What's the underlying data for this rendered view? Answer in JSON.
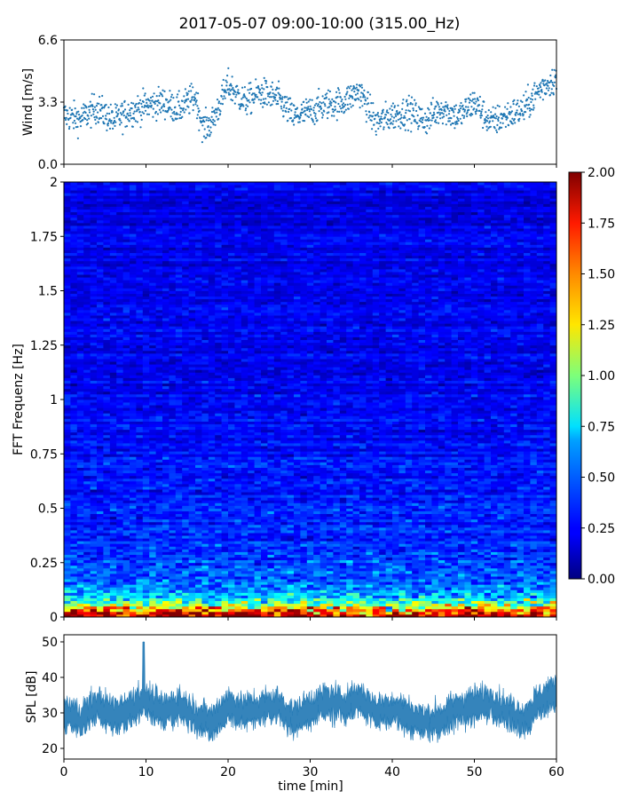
{
  "title": "2017-05-07 09:00-10:00 (315.00_Hz)",
  "chart_data": [
    {
      "type": "scatter",
      "ylabel": "Wind [m/s]",
      "xlim": [
        0,
        60
      ],
      "ylim": [
        0.0,
        6.6
      ],
      "yticks": [
        "0.0",
        "3.3",
        "6.6"
      ],
      "color": "#1f77b4",
      "series": [
        {
          "x": [
            0,
            2,
            4,
            6,
            8,
            10,
            12,
            14,
            16,
            17,
            18,
            20,
            22,
            24,
            26,
            28,
            30,
            32,
            34,
            36,
            38,
            40,
            42,
            44,
            46,
            48,
            50,
            52,
            54,
            56,
            58,
            60
          ],
          "values": [
            2.6,
            2.4,
            3.0,
            2.3,
            2.8,
            3.1,
            3.3,
            2.9,
            3.6,
            1.9,
            2.2,
            4.2,
            3.3,
            3.8,
            3.5,
            2.5,
            2.8,
            3.2,
            3.3,
            3.9,
            2.2,
            2.6,
            2.8,
            2.3,
            3.0,
            2.5,
            3.3,
            2.2,
            2.6,
            2.9,
            4.0,
            4.6
          ]
        }
      ]
    },
    {
      "type": "heatmap",
      "ylabel": "FFT Frequenz [Hz]",
      "xlim": [
        0,
        60
      ],
      "ylim": [
        0,
        2
      ],
      "yticks": [
        "0",
        "0.25",
        "0.5",
        "0.75",
        "1",
        "1.25",
        "1.5",
        "1.75",
        "2"
      ],
      "colormap": "jet",
      "colorbar": {
        "range": [
          0.0,
          2.0
        ],
        "ticks": [
          "0.00",
          "0.25",
          "0.50",
          "0.75",
          "1.00",
          "1.25",
          "1.50",
          "1.75",
          "2.00"
        ]
      },
      "mean_profile": {
        "freq": [
          0.0,
          0.02,
          0.05,
          0.08,
          0.12,
          0.18,
          0.25,
          0.35,
          0.5,
          0.75,
          1.0,
          1.5,
          2.0
        ],
        "values": [
          2.0,
          1.8,
          1.1,
          0.75,
          0.55,
          0.45,
          0.38,
          0.33,
          0.3,
          0.26,
          0.24,
          0.22,
          0.2
        ]
      }
    },
    {
      "type": "area",
      "ylabel": "SPL [dB]",
      "xlabel": "time [min]",
      "xlim": [
        0,
        60
      ],
      "ylim": [
        17,
        52
      ],
      "yticks": [
        "20",
        "30",
        "40",
        "50"
      ],
      "xticks": [
        "0",
        "10",
        "20",
        "30",
        "40",
        "50",
        "60"
      ],
      "color": "#1f77b4",
      "series": [
        {
          "x": [
            0,
            2,
            4,
            6,
            8,
            9.7,
            12,
            14,
            16,
            18,
            20,
            22,
            24,
            26,
            28,
            30,
            32,
            34,
            36,
            38,
            40,
            42,
            44,
            46,
            48,
            50,
            52,
            54,
            56,
            58,
            60
          ],
          "values": [
            30,
            28,
            32,
            29,
            31,
            34,
            30,
            32,
            29,
            27,
            32,
            30,
            31,
            32,
            28,
            31,
            33,
            32,
            34,
            30,
            31,
            29,
            27,
            28,
            31,
            32,
            33,
            30,
            28,
            33,
            36
          ]
        }
      ]
    }
  ]
}
